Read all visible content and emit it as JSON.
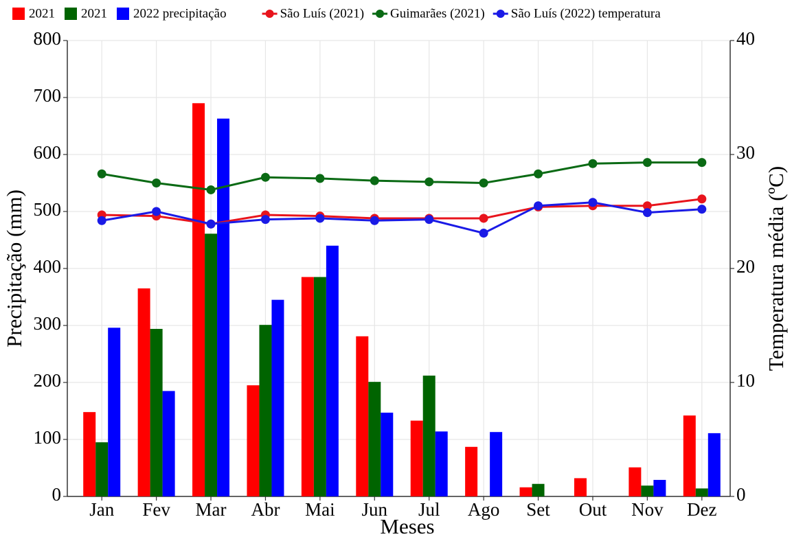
{
  "chart_data": {
    "type": "bar",
    "categories": [
      "Jan",
      "Fev",
      "Mar",
      "Abr",
      "Mai",
      "Jun",
      "Jul",
      "Ago",
      "Set",
      "Out",
      "Nov",
      "Dez"
    ],
    "x_label": "Meses",
    "y_label": "Precipitação (mm)",
    "y2_label": "Temperatura média (ºC)",
    "ylim": [
      0,
      800
    ],
    "yticks": [
      0,
      100,
      200,
      300,
      400,
      500,
      600,
      700,
      800
    ],
    "y2lim": [
      0,
      40
    ],
    "y2ticks": [
      0,
      10,
      20,
      30,
      40
    ],
    "grid": true,
    "legend": "top",
    "series": [
      {
        "name": "2021",
        "type": "bar",
        "color": "#ff0000",
        "values": [
          148,
          365,
          690,
          195,
          385,
          281,
          133,
          87,
          16,
          32,
          51,
          142
        ]
      },
      {
        "name": "2021",
        "type": "bar",
        "color": "#006400",
        "values": [
          95,
          294,
          461,
          301,
          385,
          201,
          212,
          0,
          22,
          0,
          19,
          14
        ]
      },
      {
        "name": "2022 precipitação",
        "type": "bar",
        "color": "#0000ff",
        "values": [
          296,
          185,
          663,
          345,
          440,
          147,
          114,
          113,
          0,
          0,
          29,
          111
        ]
      },
      {
        "name": "São Luís (2021)",
        "type": "line",
        "axis": "y2",
        "color": "#e8141c",
        "values": [
          24.7,
          24.6,
          23.9,
          24.7,
          24.6,
          24.4,
          24.4,
          24.4,
          25.4,
          25.5,
          25.5,
          26.1
        ]
      },
      {
        "name": "Guimarães (2021)",
        "type": "line",
        "axis": "y2",
        "color": "#0a6a14",
        "values": [
          28.3,
          27.5,
          26.9,
          28.0,
          27.9,
          27.7,
          27.6,
          27.5,
          28.3,
          29.2,
          29.3,
          29.3
        ]
      },
      {
        "name": "São Luís (2022) temperatura",
        "type": "line",
        "axis": "y2",
        "color": "#1a1ae6",
        "values": [
          24.2,
          25.0,
          23.9,
          24.3,
          24.4,
          24.2,
          24.3,
          23.1,
          25.5,
          25.8,
          24.9,
          25.2
        ]
      }
    ]
  }
}
